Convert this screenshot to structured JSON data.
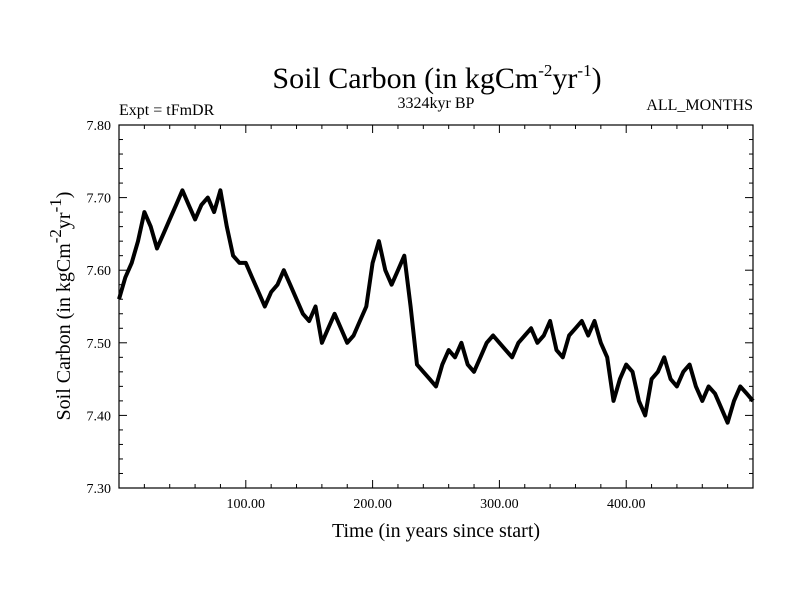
{
  "chart_data": {
    "type": "line",
    "title_main": "Soil Carbon (in kgCm",
    "title_sup1": "-2",
    "title_mid": "yr",
    "title_sup2": "-1",
    "title_end": ")",
    "subtitle_left": "Expt = tFmDR",
    "subtitle_center": "3324kyr BP",
    "subtitle_right": "ALL_MONTHS",
    "xlabel": "Time (in years since start)",
    "ylabel_main": "Soil Carbon (in kgCm",
    "ylabel_sup1": "-2",
    "ylabel_mid": "yr",
    "ylabel_sup2": "-1",
    "ylabel_end": ")",
    "xlim": [
      0,
      500
    ],
    "ylim": [
      7.3,
      7.8
    ],
    "xticks": [
      100,
      200,
      300,
      400
    ],
    "xtick_labels": [
      "100.00",
      "200.00",
      "300.00",
      "400.00"
    ],
    "yticks": [
      7.3,
      7.4,
      7.5,
      7.6,
      7.7,
      7.8
    ],
    "ytick_labels": [
      "7.30",
      "7.40",
      "7.50",
      "7.60",
      "7.70",
      "7.80"
    ],
    "series": [
      {
        "x": [
          0,
          5,
          10,
          15,
          20,
          25,
          30,
          35,
          40,
          45,
          50,
          55,
          60,
          65,
          70,
          75,
          80,
          85,
          90,
          95,
          100,
          105,
          110,
          115,
          120,
          125,
          130,
          135,
          140,
          145,
          150,
          155,
          160,
          165,
          170,
          175,
          180,
          185,
          190,
          195,
          200,
          205,
          210,
          215,
          220,
          225,
          230,
          235,
          240,
          245,
          250,
          255,
          260,
          265,
          270,
          275,
          280,
          285,
          290,
          295,
          300,
          305,
          310,
          315,
          320,
          325,
          330,
          335,
          340,
          345,
          350,
          355,
          360,
          365,
          370,
          375,
          380,
          385,
          390,
          395,
          400,
          405,
          410,
          415,
          420,
          425,
          430,
          435,
          440,
          445,
          450,
          455,
          460,
          465,
          470,
          475,
          480,
          485,
          490,
          495,
          500
        ],
        "values": [
          7.56,
          7.59,
          7.61,
          7.64,
          7.68,
          7.66,
          7.63,
          7.65,
          7.67,
          7.69,
          7.71,
          7.69,
          7.67,
          7.69,
          7.7,
          7.68,
          7.71,
          7.66,
          7.62,
          7.61,
          7.61,
          7.59,
          7.57,
          7.55,
          7.57,
          7.58,
          7.6,
          7.58,
          7.56,
          7.54,
          7.53,
          7.55,
          7.5,
          7.52,
          7.54,
          7.52,
          7.5,
          7.51,
          7.53,
          7.55,
          7.61,
          7.64,
          7.6,
          7.58,
          7.6,
          7.62,
          7.55,
          7.47,
          7.46,
          7.45,
          7.44,
          7.47,
          7.49,
          7.48,
          7.5,
          7.47,
          7.46,
          7.48,
          7.5,
          7.51,
          7.5,
          7.49,
          7.48,
          7.5,
          7.51,
          7.52,
          7.5,
          7.51,
          7.53,
          7.49,
          7.48,
          7.51,
          7.52,
          7.53,
          7.51,
          7.53,
          7.5,
          7.48,
          7.42,
          7.45,
          7.47,
          7.46,
          7.42,
          7.4,
          7.45,
          7.46,
          7.48,
          7.45,
          7.44,
          7.46,
          7.47,
          7.44,
          7.42,
          7.44,
          7.43,
          7.41,
          7.39,
          7.42,
          7.44,
          7.43,
          7.42
        ]
      }
    ],
    "grid": false,
    "legend": "none"
  }
}
